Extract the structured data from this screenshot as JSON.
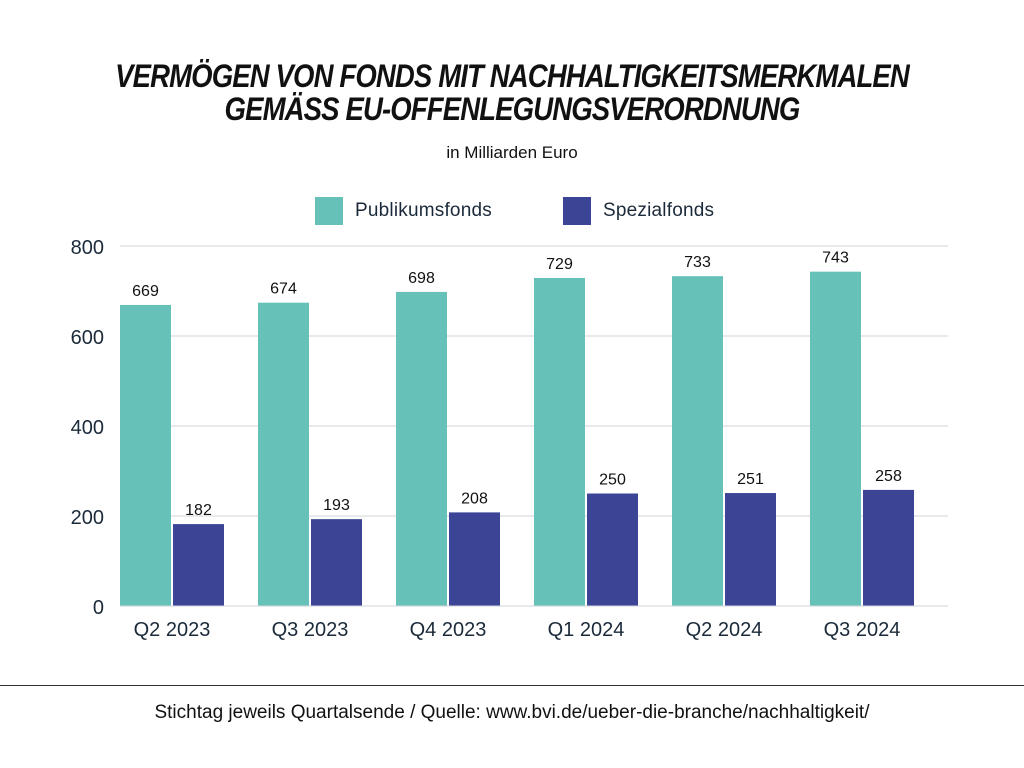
{
  "title_line1": "VERMÖGEN VON FONDS MIT NACHHALTIGKEITSMERKMALEN",
  "title_line2": "GEMÄSS EU-OFFENLEGUNGSVERORDNUNG",
  "subtitle": "in Milliarden Euro",
  "footer": "Stichtag jeweils Quartalsende / Quelle: www.bvi.de/ueber-die-branche/nachhaltigkeit/",
  "colors": {
    "publikumsfonds": "#66c2b9",
    "spezialfonds": "#3b4495",
    "grid": "#cfd4d9",
    "axis_text": "#1b2a3a"
  },
  "chart_data": {
    "type": "bar",
    "categories": [
      "Q2 2023",
      "Q3 2023",
      "Q4 2023",
      "Q1 2024",
      "Q2 2024",
      "Q3 2024"
    ],
    "series": [
      {
        "name": "Publikumsfonds",
        "values": [
          669,
          674,
          698,
          729,
          733,
          743
        ]
      },
      {
        "name": "Spezialfonds",
        "values": [
          182,
          193,
          208,
          250,
          251,
          258
        ]
      }
    ],
    "yticks": [
      0,
      200,
      400,
      600,
      800
    ],
    "ylim": [
      0,
      800
    ],
    "grid": true,
    "legend_position": "top-center",
    "data_labels": true
  }
}
